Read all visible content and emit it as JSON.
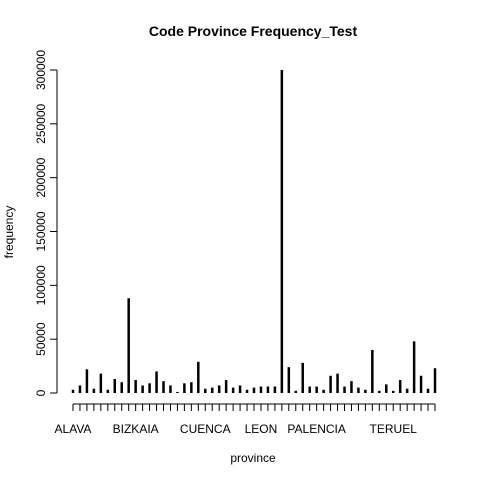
{
  "chart_data": {
    "type": "bar",
    "title": "Code Province Frequency_Test",
    "x_label": "province",
    "y_label": "frequency",
    "categories": [
      "ALAVA",
      null,
      null,
      null,
      null,
      null,
      null,
      null,
      null,
      "BIZKAIA",
      null,
      null,
      null,
      null,
      null,
      null,
      null,
      null,
      null,
      "CUENCA",
      null,
      null,
      null,
      null,
      null,
      null,
      null,
      "LEON",
      null,
      null,
      null,
      null,
      null,
      null,
      null,
      "PALENCIA",
      null,
      null,
      null,
      null,
      null,
      null,
      null,
      null,
      null,
      null,
      "TERUEL",
      null,
      null,
      null,
      null,
      null,
      null
    ],
    "values": [
      3000,
      7000,
      22000,
      4000,
      18000,
      3000,
      13000,
      10000,
      88000,
      12000,
      7000,
      9000,
      20000,
      11000,
      7000,
      1000,
      9000,
      10000,
      29000,
      4000,
      5000,
      7000,
      12000,
      5000,
      7000,
      3000,
      5000,
      6000,
      6000,
      6000,
      300000,
      24000,
      2000,
      28000,
      6000,
      6000,
      3000,
      16000,
      18000,
      6000,
      11000,
      5000,
      3000,
      40000,
      2000,
      8000,
      2000,
      12000,
      4000,
      48000,
      16000,
      4000,
      23000
    ],
    "color": "#000000",
    "ylim": [
      0,
      300000
    ],
    "yticks": [
      0,
      50000,
      100000,
      150000,
      200000,
      250000,
      300000
    ]
  }
}
